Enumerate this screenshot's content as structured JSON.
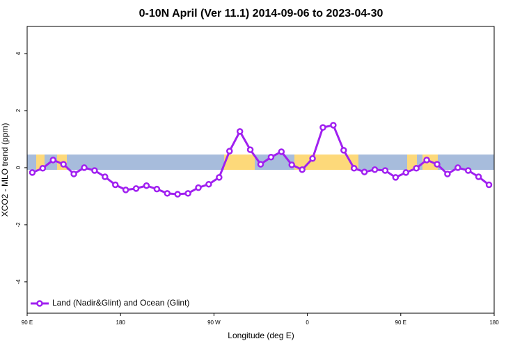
{
  "chart_data": {
    "type": "line",
    "title": "0-10N April (Ver 11.1)   2014-09-06 to 2023-04-30",
    "x_label": "Longitude (deg E)",
    "y_label": "XCO2 - MLO trend (ppm)",
    "x": [
      95,
      105,
      115,
      125,
      135,
      145,
      155,
      165,
      175,
      185,
      195,
      205,
      215,
      225,
      235,
      245,
      255,
      265,
      275,
      285,
      295,
      305,
      315,
      325,
      335,
      345,
      355,
      365,
      375,
      385,
      395,
      405,
      415,
      425,
      435,
      445,
      455,
      465,
      475,
      485,
      495,
      505,
      515,
      525,
      535
    ],
    "series": [
      {
        "name": "Land (Nadir&Glint) and Ocean (Glint)",
        "color": "#a020f0",
        "values": [
          -0.17,
          -0.02,
          0.27,
          0.12,
          -0.22,
          0.0,
          -0.1,
          -0.32,
          -0.6,
          -0.78,
          -0.73,
          -0.63,
          -0.75,
          -0.9,
          -0.93,
          -0.9,
          -0.7,
          -0.58,
          -0.34,
          0.58,
          1.27,
          0.63,
          0.12,
          0.37,
          0.56,
          0.1,
          -0.07,
          0.32,
          1.41,
          1.49,
          0.61,
          -0.02,
          -0.15,
          -0.07,
          -0.1,
          -0.34,
          -0.17,
          -0.02,
          0.27,
          0.12,
          -0.22,
          0.0,
          -0.1,
          -0.32,
          -0.6
        ]
      }
    ],
    "xlim": [
      90,
      540
    ],
    "xticks": [
      {
        "value": 90,
        "label": "90 E"
      },
      180,
      {
        "value": 270,
        "label": "90 W"
      },
      {
        "value": 360,
        "label": "0"
      },
      {
        "value": 450,
        "label": "90 E"
      },
      {
        "value": 540,
        "label": "180"
      }
    ],
    "ylim": [
      -5.1,
      4.95
    ],
    "yticks": [
      -4,
      -2,
      0,
      2,
      4
    ],
    "legend": "bottom-left"
  }
}
